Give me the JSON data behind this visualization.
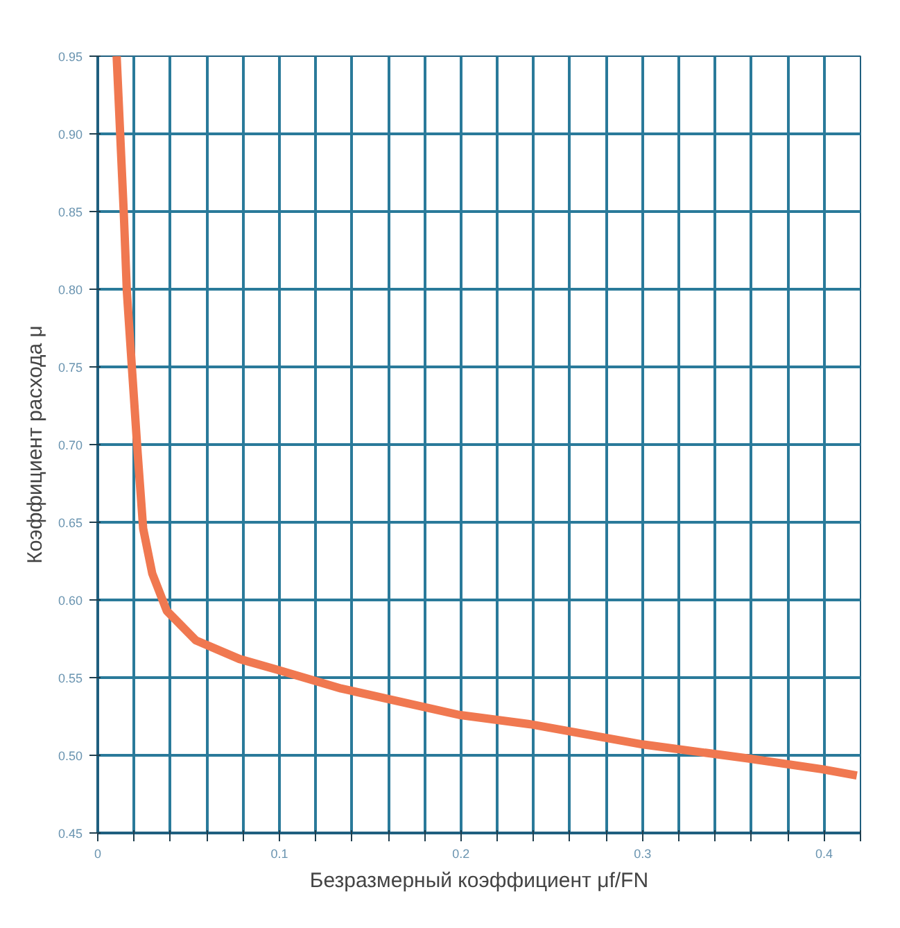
{
  "chart_data": {
    "type": "line",
    "xlabel": "Безразмерный коэффициент μf/FN",
    "ylabel": "Коэффициент расхода μ",
    "x": [
      0.0104,
      0.0144,
      0.016,
      0.019,
      0.022,
      0.025,
      0.03,
      0.038,
      0.054,
      0.078,
      0.099,
      0.134,
      0.199,
      0.238,
      0.3,
      0.358,
      0.399,
      0.418
    ],
    "series": [
      {
        "color": "#f07850",
        "values": [
          0.95,
          0.847,
          0.799,
          0.746,
          0.694,
          0.646,
          0.617,
          0.593,
          0.574,
          0.562,
          0.555,
          0.543,
          0.526,
          0.52,
          0.507,
          0.498,
          0.491,
          0.487
        ]
      }
    ],
    "xlim": [
      0,
      0.42
    ],
    "ylim": [
      0.45,
      0.95
    ],
    "xticks": [
      0,
      {
        "value": 0.02,
        "label": null
      },
      {
        "value": 0.04,
        "label": null
      },
      {
        "value": 0.06,
        "label": null
      },
      {
        "value": 0.08,
        "label": null
      },
      0.1,
      {
        "value": 0.12,
        "label": null
      },
      {
        "value": 0.14,
        "label": null
      },
      {
        "value": 0.16,
        "label": null
      },
      {
        "value": 0.18,
        "label": null
      },
      0.2,
      {
        "value": 0.22,
        "label": null
      },
      {
        "value": 0.24,
        "label": null
      },
      {
        "value": 0.26,
        "label": null
      },
      {
        "value": 0.28,
        "label": null
      },
      0.3,
      {
        "value": 0.32,
        "label": null
      },
      {
        "value": 0.34,
        "label": null
      },
      {
        "value": 0.36,
        "label": null
      },
      {
        "value": 0.38,
        "label": null
      },
      0.4,
      {
        "value": 0.42,
        "label": null
      }
    ],
    "yticks": [
      {
        "value": 0.45,
        "label": "0.45"
      },
      {
        "value": 0.5,
        "label": "0.50"
      },
      0.55,
      {
        "value": 0.6,
        "label": "0.60"
      },
      0.65,
      {
        "value": 0.7,
        "label": "0.70"
      },
      0.75,
      {
        "value": 0.8,
        "label": "0.80"
      },
      0.85,
      {
        "value": 0.9,
        "label": "0.90"
      },
      0.95
    ],
    "grid": true,
    "line_style": "solid",
    "marker": "none"
  }
}
